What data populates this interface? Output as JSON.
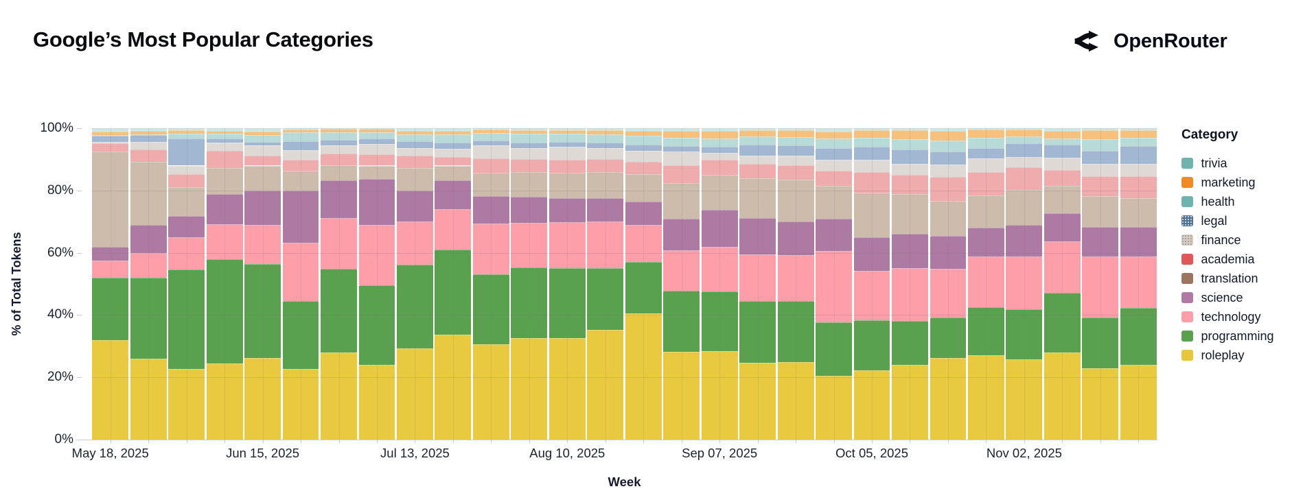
{
  "header": {
    "title": "Google’s Most Popular Categories",
    "brand": {
      "name": "OpenRouter",
      "icon": "openrouter-fork-icon"
    }
  },
  "chart": {
    "y_axis": {
      "label": "% of Total Tokens",
      "tick_labels": [
        "0%",
        "20%",
        "40%",
        "60%",
        "80%",
        "100%"
      ]
    },
    "x_axis": {
      "label": "Week",
      "tick_labels": [
        "May 18, 2025",
        "Jun 15, 2025",
        "Jul 13, 2025",
        "Aug 10, 2025",
        "Sep 07, 2025",
        "Oct 05, 2025",
        "Nov 02, 2025"
      ],
      "tick_bar_indices": [
        0,
        4,
        8,
        12,
        16,
        20,
        24
      ]
    },
    "legend": {
      "title": "Category"
    }
  },
  "chart_data": {
    "type": "bar",
    "stacked": true,
    "unit": "percent_of_total_tokens",
    "title": "Google's Most Popular Categories",
    "xlabel": "Week",
    "ylabel": "% of Total Tokens",
    "ylim": [
      0,
      100
    ],
    "grid": true,
    "legend_position": "right",
    "categories": [
      "May 18, 2025",
      "May 25, 2025",
      "Jun 01, 2025",
      "Jun 08, 2025",
      "Jun 15, 2025",
      "Jun 22, 2025",
      "Jun 29, 2025",
      "Jul 06, 2025",
      "Jul 13, 2025",
      "Jul 20, 2025",
      "Jul 27, 2025",
      "Aug 03, 2025",
      "Aug 10, 2025",
      "Aug 17, 2025",
      "Aug 24, 2025",
      "Aug 31, 2025",
      "Sep 07, 2025",
      "Sep 14, 2025",
      "Sep 21, 2025",
      "Sep 28, 2025",
      "Oct 05, 2025",
      "Oct 12, 2025",
      "Oct 19, 2025",
      "Oct 26, 2025",
      "Nov 02, 2025",
      "Nov 09, 2025",
      "Nov 16, 2025",
      "Nov 23, 2025"
    ],
    "series": [
      {
        "name": "trivia",
        "color": "#6fb3ae",
        "band_color": "#cde8e4",
        "pattern": false,
        "values": [
          1.0,
          0.9,
          0.7,
          0.8,
          1.0,
          0.4,
          0.3,
          0.3,
          0.8,
          0.9,
          0.5,
          0.6,
          0.6,
          0.6,
          0.8,
          0.8,
          0.8,
          0.6,
          0.6,
          1.1,
          0.6,
          0.6,
          0.8,
          0.4,
          0.4,
          0.9,
          0.6,
          0.6
        ]
      },
      {
        "name": "marketing",
        "color": "#f28a23",
        "band_color": "#f8c07d",
        "pattern": false,
        "values": [
          1.2,
          1.1,
          1.1,
          1.0,
          1.2,
          1.0,
          1.1,
          1.0,
          1.1,
          1.1,
          1.1,
          1.2,
          1.2,
          1.3,
          1.7,
          2.2,
          2.4,
          2.1,
          2.3,
          2.3,
          2.5,
          2.9,
          3.1,
          2.7,
          2.2,
          2.5,
          2.9,
          2.4
        ]
      },
      {
        "name": "health",
        "color": "#6fb3ae",
        "band_color": "#b8dbd7",
        "pattern": false,
        "values": [
          0.3,
          0.3,
          1.5,
          1.4,
          2.1,
          2.8,
          2.4,
          2.0,
          2.3,
          2.7,
          2.4,
          2.8,
          2.6,
          2.8,
          2.7,
          2.7,
          2.7,
          2.6,
          2.7,
          3.0,
          2.8,
          3.3,
          3.6,
          3.2,
          2.2,
          1.9,
          3.7,
          2.7
        ]
      },
      {
        "name": "legal",
        "color": "#50718f",
        "band_color": "#a2b8d2",
        "pattern": true,
        "values": [
          1.8,
          2.2,
          8.7,
          1.4,
          1.1,
          2.8,
          1.6,
          1.7,
          2.1,
          1.8,
          1.5,
          1.8,
          1.5,
          1.7,
          2.1,
          1.8,
          2.0,
          3.5,
          3.2,
          3.7,
          4.2,
          4.6,
          4.1,
          3.4,
          4.4,
          4.2,
          4.2,
          5.7
        ]
      },
      {
        "name": "finance",
        "color": "#d8ccc0",
        "band_color": "#ded9d5",
        "pattern": true,
        "values": [
          0.5,
          2.3,
          2.7,
          2.6,
          3.5,
          3.2,
          2.7,
          3.3,
          2.6,
          2.7,
          4.1,
          3.5,
          4.2,
          3.5,
          3.4,
          4.3,
          2.2,
          2.6,
          3.1,
          3.5,
          4.1,
          3.5,
          4.0,
          4.4,
          3.3,
          4.0,
          4.1,
          4.1
        ]
      },
      {
        "name": "academia",
        "color": "#e05759",
        "band_color": "#f0abad",
        "pattern": false,
        "values": [
          2.7,
          4.0,
          4.3,
          5.5,
          3.1,
          3.5,
          3.7,
          3.7,
          3.8,
          2.8,
          4.7,
          4.3,
          4.2,
          4.3,
          4.1,
          5.9,
          4.8,
          4.6,
          4.6,
          5.0,
          6.6,
          6.3,
          7.8,
          7.5,
          7.4,
          5.0,
          6.4,
          6.9
        ]
      },
      {
        "name": "translation",
        "color": "#9c7561",
        "band_color": "#cdbbac",
        "pattern": false,
        "values": [
          30.5,
          20.2,
          9.1,
          8.5,
          8.1,
          6.4,
          5.0,
          4.4,
          7.4,
          4.8,
          7.6,
          7.9,
          8.1,
          8.2,
          8.8,
          11.4,
          11.2,
          12.8,
          13.5,
          10.4,
          14.3,
          12.7,
          11.2,
          10.4,
          11.2,
          8.8,
          9.9,
          9.3
        ]
      },
      {
        "name": "science",
        "color": "#b07aa4",
        "band_color": "#ad7aa3",
        "pattern": false,
        "values": [
          4.5,
          9.0,
          6.9,
          9.6,
          10.9,
          16.7,
          12.1,
          14.6,
          9.9,
          9.2,
          8.8,
          8.3,
          7.8,
          7.6,
          7.4,
          10.1,
          12.0,
          11.7,
          10.8,
          10.4,
          10.7,
          11.0,
          10.5,
          9.2,
          10.1,
          9.1,
          9.4,
          9.5
        ]
      },
      {
        "name": "technology",
        "color": "#fd9fa9",
        "band_color": "#fd9ea8",
        "pattern": false,
        "values": [
          5.5,
          8.0,
          10.4,
          11.3,
          12.5,
          18.6,
          16.3,
          19.4,
          13.8,
          13.0,
          16.2,
          14.3,
          14.7,
          14.9,
          12.0,
          13.1,
          14.3,
          14.9,
          14.6,
          22.9,
          15.8,
          16.9,
          15.6,
          16.2,
          17.0,
          16.4,
          19.5,
          16.5
        ]
      },
      {
        "name": "programming",
        "color": "#59a14f",
        "band_color": "#59a14f",
        "pattern": false,
        "values": [
          20.0,
          26.0,
          32.0,
          33.5,
          30.2,
          21.9,
          26.9,
          25.6,
          27.0,
          27.4,
          22.4,
          22.8,
          22.5,
          19.9,
          16.4,
          19.6,
          19.1,
          20.0,
          19.7,
          17.3,
          16.2,
          14.2,
          13.0,
          15.5,
          16.1,
          19.3,
          16.4,
          18.3
        ]
      },
      {
        "name": "roleplay",
        "color": "#e7c63e",
        "band_color": "#e9c93f",
        "pattern": false,
        "values": [
          32.0,
          26.0,
          22.6,
          24.4,
          26.3,
          22.7,
          27.9,
          24.0,
          29.2,
          33.6,
          30.7,
          32.5,
          32.6,
          35.2,
          40.6,
          28.1,
          28.5,
          24.6,
          24.9,
          20.4,
          22.2,
          24.0,
          26.3,
          27.1,
          25.7,
          27.9,
          22.9,
          24.0
        ]
      }
    ]
  }
}
